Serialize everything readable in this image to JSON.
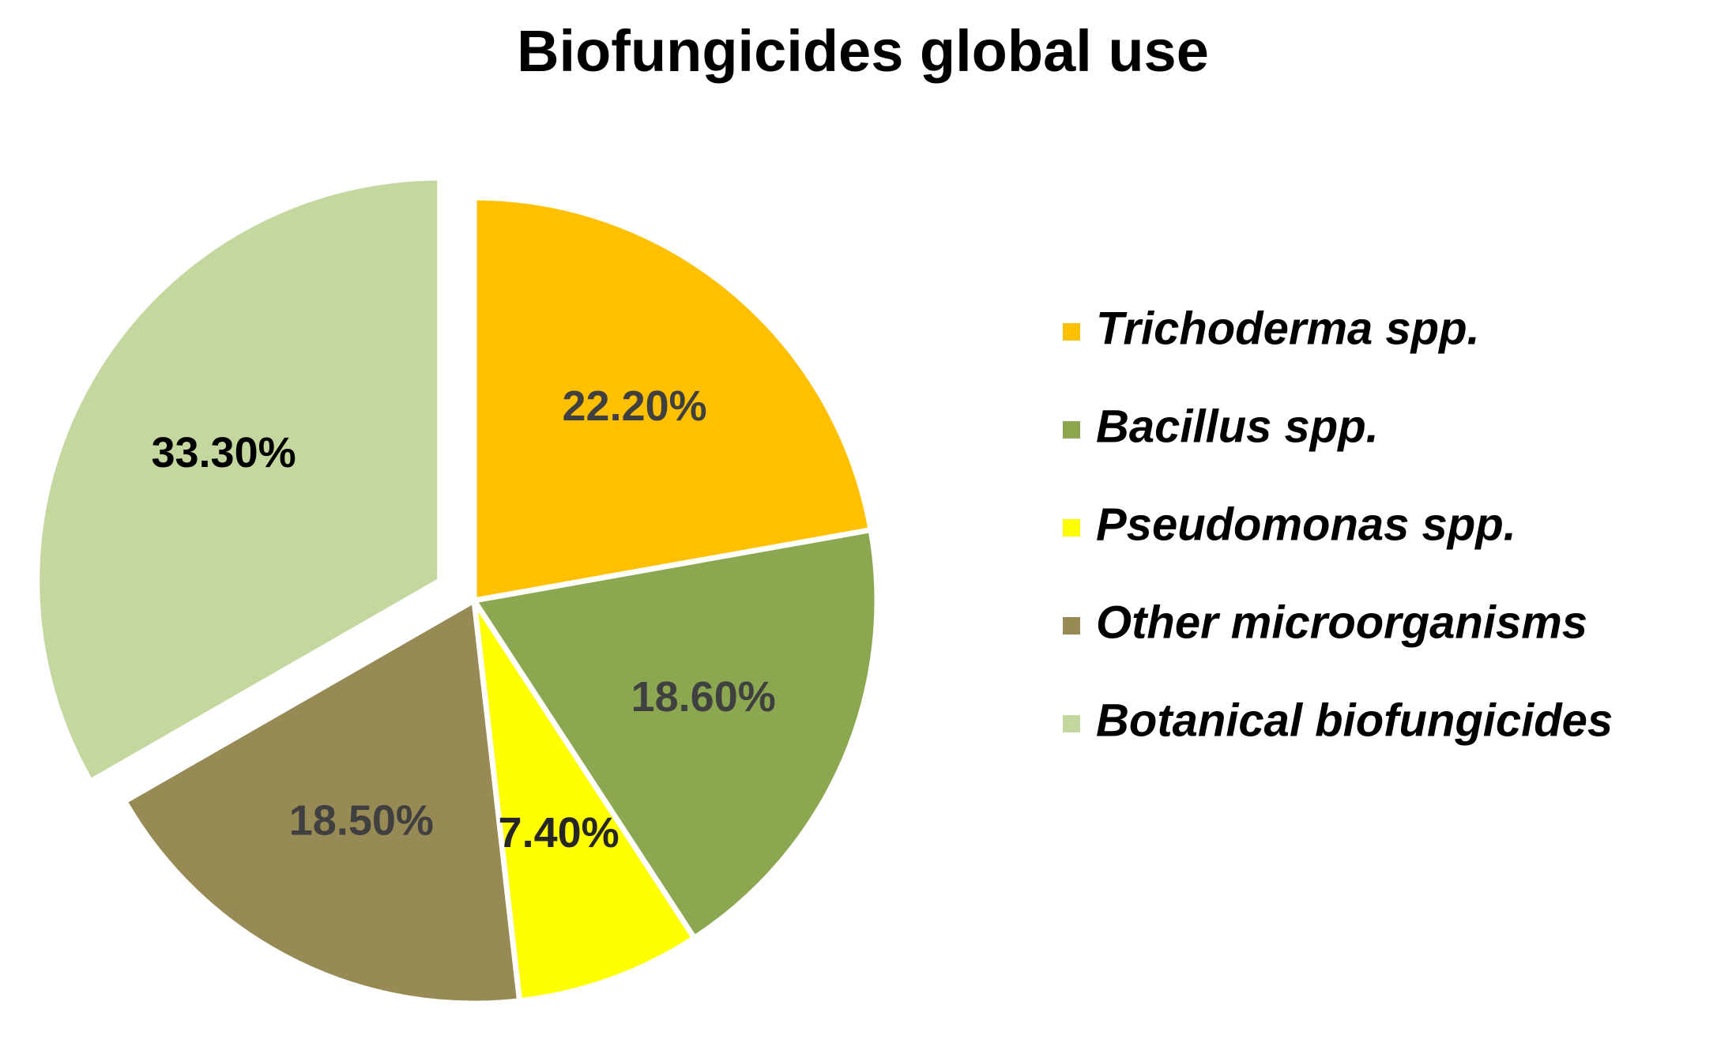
{
  "chart_data": {
    "type": "pie",
    "title": "Biofungicides global use",
    "categories": [
      "Trichoderma spp.",
      "Bacillus spp.",
      "Pseudomonas spp.",
      "Other microorganisms",
      "Botanical biofungicides"
    ],
    "values": [
      22.2,
      18.6,
      7.4,
      18.5,
      33.3
    ],
    "value_labels": [
      "22.20%",
      "18.60%",
      "7.40%",
      "18.50%",
      "33.30%"
    ],
    "colors": [
      "#FFC000",
      "#8BA851",
      "#FFFF00",
      "#978A54",
      "#C4D79E"
    ],
    "label_colors": [
      "#404040",
      "#404040",
      "#262626",
      "#404040",
      "#000000"
    ],
    "exploded": [
      false,
      false,
      false,
      false,
      true
    ],
    "legend_position": "right",
    "start_angle": "12 o'clock",
    "direction": "clockwise"
  }
}
